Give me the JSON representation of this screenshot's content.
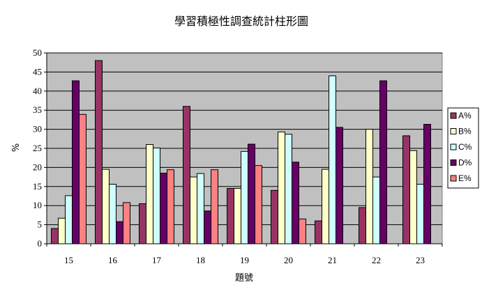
{
  "chart_data": {
    "type": "bar",
    "title": "學習積極性調查統計柱形圖",
    "xlabel": "題號",
    "ylabel": "%",
    "categories": [
      "15",
      "16",
      "17",
      "18",
      "19",
      "20",
      "21",
      "22",
      "23"
    ],
    "ylim": [
      0,
      50
    ],
    "yticks": [
      0,
      5,
      10,
      15,
      20,
      25,
      30,
      35,
      40,
      45,
      50
    ],
    "grid": true,
    "legend_position": "right",
    "series": [
      {
        "name": "A%",
        "color": "#993366",
        "values": [
          4,
          48,
          10.5,
          36,
          14.5,
          14,
          6,
          9.5,
          28.3
        ]
      },
      {
        "name": "B%",
        "color": "#FFFFCC",
        "values": [
          6.7,
          19.5,
          26,
          17.5,
          14.5,
          29.3,
          19.5,
          30,
          24.4
        ]
      },
      {
        "name": "C%",
        "color": "#CCFFFF",
        "values": [
          12.6,
          15.6,
          25.1,
          18.4,
          24.2,
          28.7,
          44,
          17.5,
          15.6
        ]
      },
      {
        "name": "D%",
        "color": "#660066",
        "values": [
          42.7,
          5.8,
          18.5,
          8.6,
          26.1,
          21.4,
          30.5,
          42.7,
          31.3
        ]
      },
      {
        "name": "E%",
        "color": "#FF8080",
        "values": [
          33.9,
          10.8,
          19.4,
          19.4,
          20.5,
          6.5,
          0,
          0,
          0
        ]
      }
    ]
  }
}
